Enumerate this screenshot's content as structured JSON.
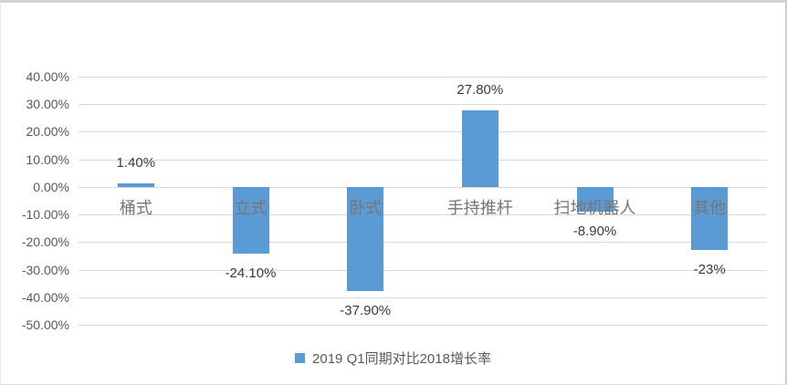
{
  "chart_data": {
    "type": "bar",
    "title": "",
    "xlabel": "",
    "ylabel": "",
    "categories": [
      "桶式",
      "立式",
      "卧式",
      "手持推杆",
      "扫地机器人",
      "其他"
    ],
    "series": [
      {
        "name": "2019 Q1同期对比2018增长率",
        "values": [
          1.4,
          -24.1,
          -37.9,
          27.8,
          -8.9,
          -23
        ],
        "data_labels": [
          "1.40%",
          "-24.10%",
          "-37.90%",
          "27.80%",
          "-8.90%",
          "-23%"
        ]
      }
    ],
    "ylim": [
      -50,
      40
    ],
    "ytick_step": 10,
    "ytick_labels": [
      "40.00%",
      "30.00%",
      "20.00%",
      "10.00%",
      "0.00%",
      "-10.00%",
      "-20.00%",
      "-30.00%",
      "-40.00%",
      "-50.00%"
    ],
    "grid": true,
    "legend_position": "bottom-center",
    "bar_color": "#5b9bd5",
    "gridline_color": "#d9d9d9",
    "axis_text_color": "#595959",
    "category_text_color": "#767676",
    "data_label_color": "#3b3b3b"
  },
  "legend": {
    "label": "2019 Q1同期对比2018增长率"
  }
}
